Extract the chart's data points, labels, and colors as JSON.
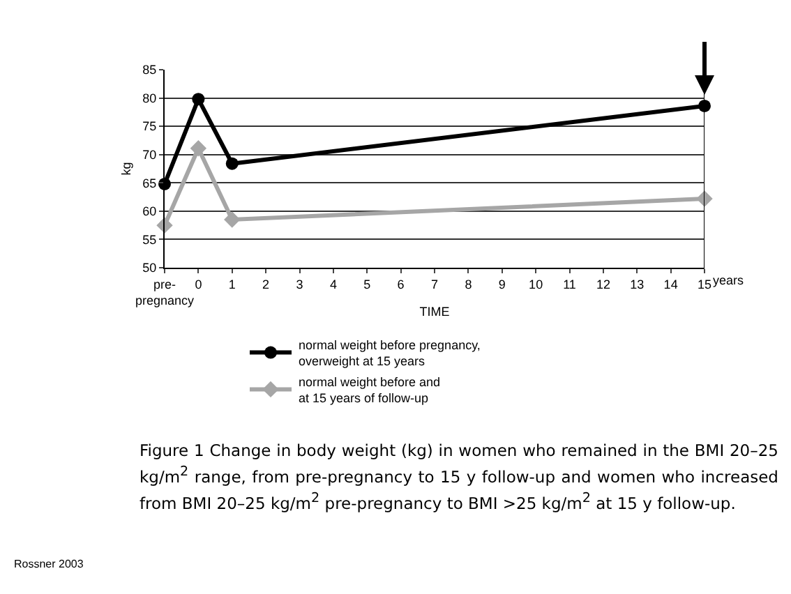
{
  "chart_data": {
    "type": "line",
    "xlabel": "TIME",
    "ylabel": "kg",
    "x": [
      -1,
      0,
      1,
      15
    ],
    "xlim": [
      -1,
      15
    ],
    "xticks": [
      {
        "value": -1,
        "label": "pre-\npregnancy"
      },
      0,
      1,
      2,
      3,
      4,
      5,
      6,
      7,
      8,
      9,
      10,
      11,
      12,
      13,
      14,
      15
    ],
    "ylim": [
      50,
      85
    ],
    "yticks": [
      50,
      55,
      60,
      65,
      70,
      75,
      80,
      85
    ],
    "grid": "y",
    "legend": "bottom",
    "line_style": "solid",
    "series": [
      {
        "name": "normal weight before pregnancy, overweight at 15 years",
        "color": "#000000",
        "marker": "circle",
        "values": [
          64.8,
          79.8,
          68.4,
          78.6
        ]
      },
      {
        "name": "normal weight before and at 15 years of follow-up",
        "color": "#a6a6a6",
        "marker": "diamond",
        "values": [
          57.5,
          71.1,
          58.5,
          62.2
        ]
      }
    ],
    "annotations": [
      "years",
      "Figure 1   Change in body weight (kg) in women who remained in the BMI 20–25 kg/m$^{2}$ range, from pre-pregnancy to 15 y follow-up and women who increased from BMI 20–25 kg/m$^{2}$ pre-pregnancy to BMI >25 kg/m$^{2}$ at 15 y follow-up.",
      "Rossner 2003"
    ]
  }
}
